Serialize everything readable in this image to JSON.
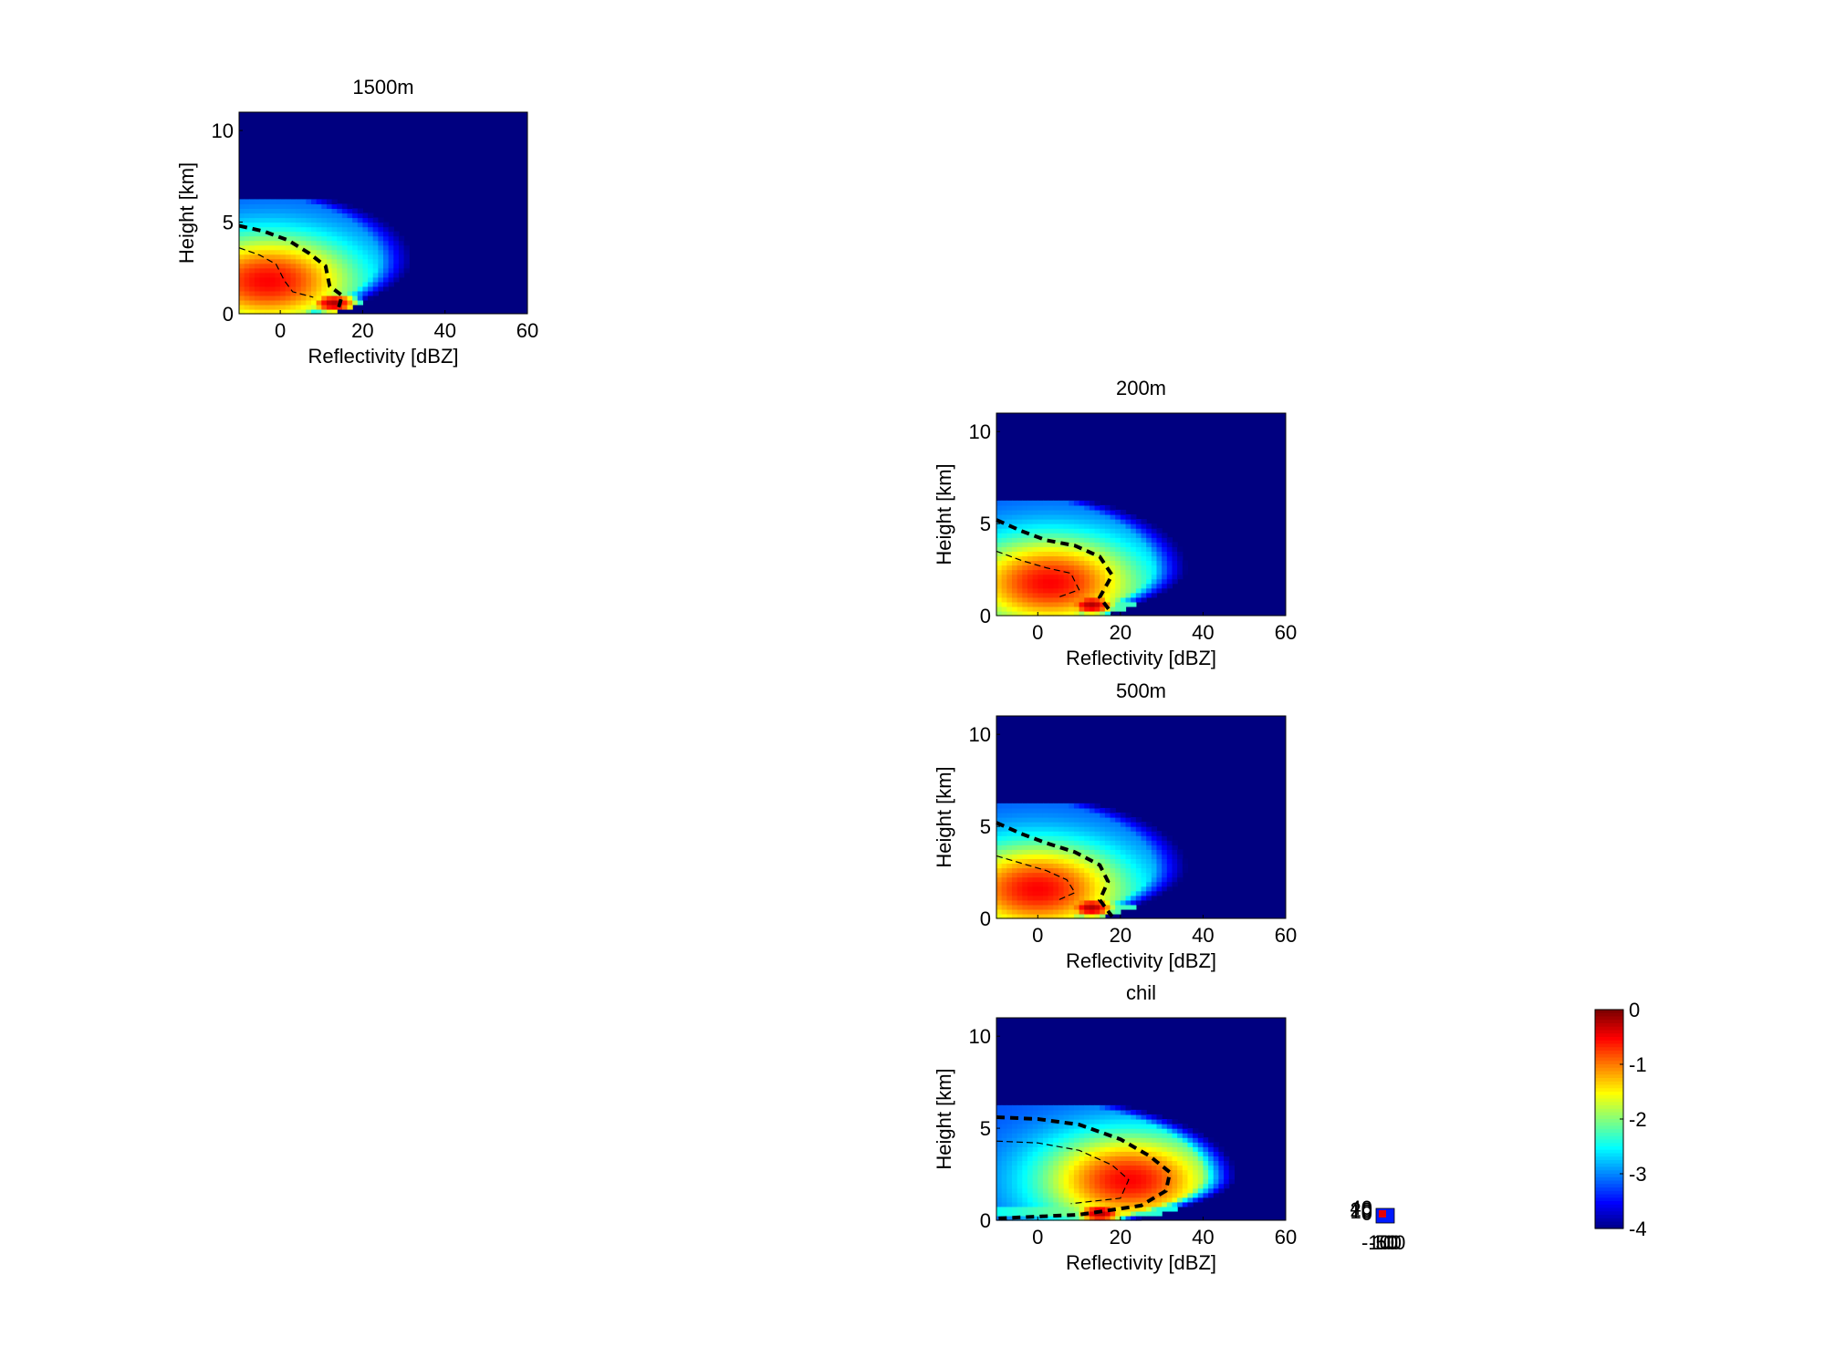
{
  "chart_data": [
    {
      "type": "heatmap",
      "title": "1500m",
      "xlabel": "Reflectivity [dBZ]",
      "ylabel": "Height [km]",
      "xlim": [
        -10,
        60
      ],
      "ylim": [
        0,
        11
      ],
      "xticks": [
        0,
        20,
        40,
        60
      ],
      "yticks": [
        0,
        5,
        10
      ],
      "colormap": "jet",
      "clim": [
        -4,
        0
      ],
      "field": {
        "echo_top_km": 6.2,
        "bulge_km": 3.0,
        "max_extent_dbz": 32,
        "core_dbz": -3,
        "core_height_km": 1.8,
        "bright_band_dbz": 13,
        "bright_band_height_km": 0.6,
        "near_surface_dbz": 4
      },
      "contours": {
        "bold": [
          [
            -10,
            4.8
          ],
          [
            -4,
            4.5
          ],
          [
            2,
            4.0
          ],
          [
            7,
            3.3
          ],
          [
            11,
            2.6
          ],
          [
            12,
            1.5
          ],
          [
            15,
            1.0
          ],
          [
            14,
            0.2
          ]
        ],
        "thin": [
          [
            -10,
            3.6
          ],
          [
            -5,
            3.2
          ],
          [
            -1,
            2.7
          ],
          [
            1,
            1.8
          ],
          [
            3,
            1.2
          ],
          [
            8,
            0.9
          ]
        ]
      }
    },
    {
      "type": "heatmap",
      "title": "200m",
      "xlabel": "Reflectivity [dBZ]",
      "ylabel": "Height [km]",
      "xlim": [
        -10,
        60
      ],
      "ylim": [
        0,
        11
      ],
      "xticks": [
        0,
        20,
        40,
        60
      ],
      "yticks": [
        0,
        5,
        10
      ],
      "colormap": "jet",
      "clim": [
        -4,
        0
      ],
      "field": {
        "echo_top_km": 6.2,
        "bulge_km": 2.6,
        "max_extent_dbz": 36,
        "core_dbz": 3,
        "core_height_km": 1.8,
        "bright_band_dbz": 13,
        "bright_band_height_km": 0.6,
        "near_surface_dbz": 8
      },
      "contours": {
        "bold": [
          [
            -10,
            5.2
          ],
          [
            -4,
            4.6
          ],
          [
            2,
            4.1
          ],
          [
            9,
            3.8
          ],
          [
            15,
            3.2
          ],
          [
            18,
            2.2
          ],
          [
            15,
            1.0
          ],
          [
            18,
            0.1
          ]
        ],
        "thin": [
          [
            -10,
            3.5
          ],
          [
            -4,
            3.0
          ],
          [
            2,
            2.6
          ],
          [
            8,
            2.3
          ],
          [
            10,
            1.4
          ],
          [
            5,
            1.0
          ]
        ]
      }
    },
    {
      "type": "heatmap",
      "title": "500m",
      "xlabel": "Reflectivity [dBZ]",
      "ylabel": "Height [km]",
      "xlim": [
        -10,
        60
      ],
      "ylim": [
        0,
        11
      ],
      "xticks": [
        0,
        20,
        40,
        60
      ],
      "yticks": [
        0,
        5,
        10
      ],
      "colormap": "jet",
      "clim": [
        -4,
        0
      ],
      "field": {
        "echo_top_km": 6.2,
        "bulge_km": 2.8,
        "max_extent_dbz": 36,
        "core_dbz": 0,
        "core_height_km": 1.6,
        "bright_band_dbz": 13,
        "bright_band_height_km": 0.6,
        "near_surface_dbz": 8
      },
      "contours": {
        "bold": [
          [
            -10,
            5.2
          ],
          [
            -4,
            4.6
          ],
          [
            2,
            4.1
          ],
          [
            9,
            3.6
          ],
          [
            15,
            2.9
          ],
          [
            17,
            2.0
          ],
          [
            15,
            1.0
          ],
          [
            18,
            0.1
          ]
        ],
        "thin": [
          [
            -10,
            3.4
          ],
          [
            -4,
            3.0
          ],
          [
            2,
            2.6
          ],
          [
            7,
            2.1
          ],
          [
            9,
            1.4
          ],
          [
            5,
            1.0
          ]
        ]
      }
    },
    {
      "type": "heatmap",
      "title": "chil",
      "xlabel": "Reflectivity [dBZ]",
      "ylabel": "Height [km]",
      "xlim": [
        -10,
        60
      ],
      "ylim": [
        0,
        11
      ],
      "xticks": [
        0,
        20,
        40,
        60
      ],
      "yticks": [
        0,
        5,
        10
      ],
      "colormap": "jet",
      "clim": [
        -4,
        0
      ],
      "field": {
        "echo_top_km": 6.3,
        "bulge_km": 2.4,
        "max_extent_dbz": 48,
        "core_dbz": 22,
        "core_height_km": 2.2,
        "bright_band_dbz": 15,
        "bright_band_height_km": 0.4,
        "near_surface_dbz": 12
      },
      "contours": {
        "bold": [
          [
            -10,
            5.6
          ],
          [
            0,
            5.5
          ],
          [
            10,
            5.2
          ],
          [
            20,
            4.4
          ],
          [
            27,
            3.5
          ],
          [
            32,
            2.6
          ],
          [
            31,
            1.6
          ],
          [
            25,
            0.8
          ],
          [
            10,
            0.3
          ],
          [
            -10,
            0.1
          ]
        ],
        "thin": [
          [
            -10,
            4.3
          ],
          [
            0,
            4.2
          ],
          [
            10,
            3.8
          ],
          [
            18,
            3.0
          ],
          [
            22,
            2.2
          ],
          [
            20,
            1.2
          ],
          [
            8,
            0.9
          ]
        ]
      }
    }
  ],
  "colorbar": {
    "ticks": [
      "0",
      "-1",
      "-2",
      "-3",
      "-4"
    ],
    "range": [
      -4,
      0
    ]
  },
  "tiny_axes": {
    "ylabels": [
      "40",
      "20",
      "10",
      "0"
    ],
    "xlabels": [
      "-100",
      "-50",
      "0",
      "50",
      "100"
    ]
  }
}
